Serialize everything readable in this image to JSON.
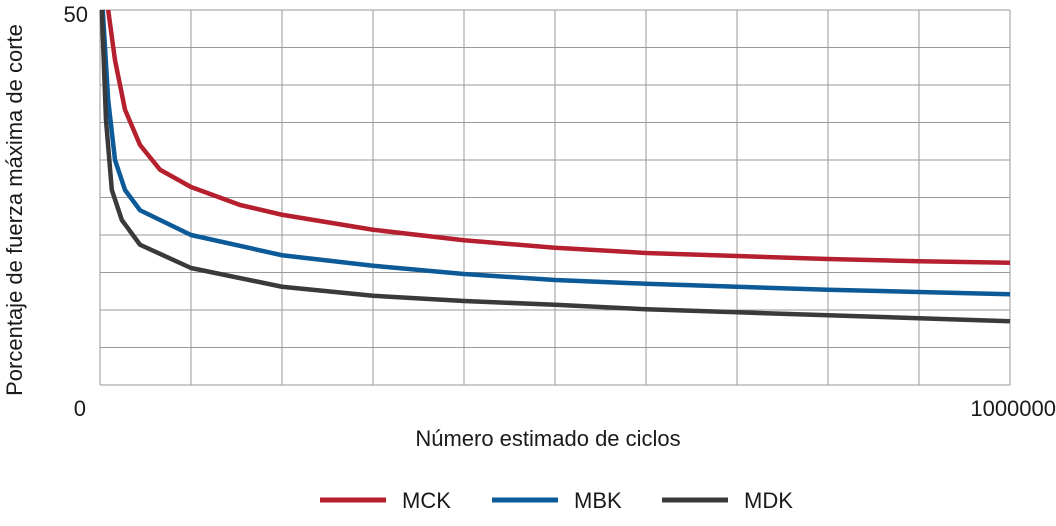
{
  "chart_data": {
    "type": "line",
    "x_label": "Número estimado de ciclos",
    "y_label": "Porcentaje de fuerza máxima de corte",
    "xlim": [
      0,
      1000000
    ],
    "ylim": [
      0,
      50
    ],
    "xticks": [
      0,
      1000000
    ],
    "yticks": [
      50
    ],
    "xgrid": [
      0,
      100000,
      200000,
      300000,
      400000,
      500000,
      600000,
      700000,
      800000,
      900000,
      1000000
    ],
    "ygrid": [
      0,
      5,
      10,
      15,
      20,
      25,
      30,
      35,
      40,
      45,
      50
    ],
    "legend": "bottom",
    "series": [
      {
        "name": "MCK",
        "color": "#b51f2e",
        "x": [
          9000,
          16500,
          27500,
          44000,
          66000,
          100000,
          154000,
          200000,
          300000,
          400000,
          500000,
          600000,
          700000,
          800000,
          900000,
          1000000
        ],
        "values": [
          50,
          43.3,
          36.7,
          32,
          28.7,
          26.4,
          24,
          22.7,
          20.7,
          19.3,
          18.3,
          17.6,
          17.2,
          16.8,
          16.5,
          16.3
        ]
      },
      {
        "name": "MBK",
        "color": "#0c5a98",
        "x": [
          3000,
          9000,
          16500,
          27500,
          44000,
          100000,
          200000,
          300000,
          400000,
          500000,
          600000,
          700000,
          800000,
          900000,
          1000000
        ],
        "values": [
          50,
          38,
          30,
          26,
          23.3,
          20,
          17.3,
          15.9,
          14.8,
          14,
          13.5,
          13.1,
          12.7,
          12.4,
          12.1
        ]
      },
      {
        "name": "MDK",
        "color": "#3a3a3c",
        "x": [
          2000,
          6600,
          13000,
          24000,
          44000,
          100000,
          200000,
          300000,
          400000,
          500000,
          600000,
          700000,
          800000,
          900000,
          1000000
        ],
        "values": [
          50,
          35.3,
          26,
          22,
          18.7,
          15.6,
          13.1,
          11.9,
          11.2,
          10.7,
          10.1,
          9.7,
          9.3,
          8.9,
          8.5
        ]
      }
    ]
  }
}
